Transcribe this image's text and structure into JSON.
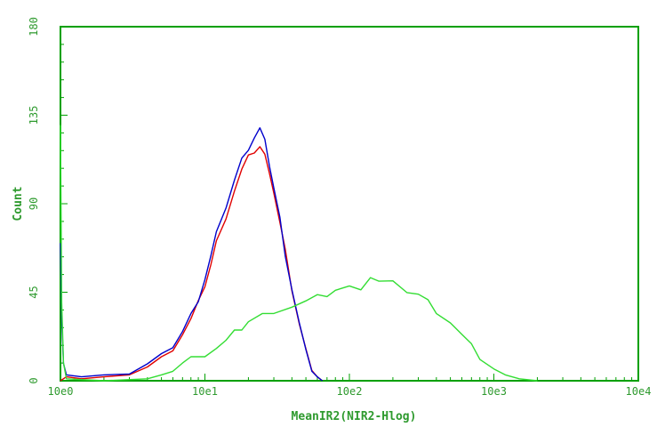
{
  "chart_data": {
    "type": "line",
    "xlabel": "MeanIR2(NIR2-Hlog)",
    "ylabel": "Count",
    "x_scale": "log",
    "xlim": [
      1,
      10000
    ],
    "ylim": [
      0,
      180
    ],
    "x_ticks": [
      {
        "value": 1,
        "label": "10e0"
      },
      {
        "value": 10,
        "label": "10e1"
      },
      {
        "value": 100,
        "label": "10e2"
      },
      {
        "value": 1000,
        "label": "10e3"
      },
      {
        "value": 10000,
        "label": "10e4"
      }
    ],
    "y_ticks": [
      {
        "value": 0,
        "label": "0"
      },
      {
        "value": 45,
        "label": "45"
      },
      {
        "value": 90,
        "label": "90"
      },
      {
        "value": 135,
        "label": "135"
      },
      {
        "value": 180,
        "label": "180"
      }
    ],
    "grid": false,
    "legend": "none",
    "colors": {
      "axis": "#00a000",
      "text": "#2e9a2e",
      "frame_bg": "#ffffff"
    },
    "series": [
      {
        "color": "#e00000",
        "x": [
          1.0,
          1.1,
          1.4,
          2.0,
          3.0,
          4.0,
          5.0,
          6.0,
          7.0,
          8.0,
          9.0,
          10.0,
          11.0,
          12.0,
          14.0,
          16.0,
          18.0,
          20.0,
          22.0,
          24.0,
          26.0,
          28.0,
          30.0,
          33.0,
          36.0,
          40.0,
          45.0,
          50.0,
          55.0,
          60.0,
          65.0
        ],
        "y": [
          0,
          2,
          1,
          2,
          3,
          7,
          11,
          17,
          24,
          31,
          39,
          49,
          59,
          70,
          84,
          97,
          107,
          113,
          117,
          119,
          114,
          107,
          96,
          80,
          65,
          47,
          29,
          15,
          7,
          2,
          0
        ]
      },
      {
        "color": "#0000cc",
        "x": [
          1.0,
          1.02,
          1.05,
          1.1,
          1.4,
          2.0,
          3.0,
          4.0,
          5.0,
          6.0,
          7.0,
          8.0,
          9.0,
          10.0,
          11.0,
          12.0,
          14.0,
          16.0,
          18.0,
          20.0,
          22.0,
          24.0,
          26.0,
          28.0,
          30.0,
          33.0,
          36.0,
          40.0,
          45.0,
          50.0,
          55.0,
          60.0,
          65.0
        ],
        "y": [
          70,
          30,
          10,
          3,
          2,
          3,
          4,
          8,
          12,
          18,
          25,
          33,
          42,
          52,
          63,
          74,
          89,
          102,
          112,
          119,
          124,
          128,
          121,
          110,
          98,
          82,
          65,
          47,
          29,
          14,
          6,
          2,
          0
        ]
      },
      {
        "color": "#33dd33",
        "x": [
          1.0,
          1.02,
          1.05,
          1.1,
          2.0,
          4.0,
          5.0,
          6.0,
          7.0,
          8.0,
          10.0,
          12.0,
          14.0,
          16.0,
          18.0,
          20.0,
          25.0,
          30.0,
          40.0,
          50.0,
          60.0,
          70.0,
          80.0,
          100.0,
          120.0,
          140.0,
          160.0,
          200.0,
          250.0,
          300.0,
          350.0,
          400.0,
          500.0,
          600.0,
          700.0,
          800.0,
          1000.0,
          1200.0,
          1500.0,
          2000.0
        ],
        "y": [
          130,
          40,
          8,
          1,
          0,
          1,
          3,
          6,
          9,
          11,
          14,
          17,
          20,
          24,
          27,
          30,
          33,
          36,
          38,
          40,
          42,
          44,
          46,
          47,
          48,
          53,
          50,
          49,
          46,
          44,
          40,
          36,
          30,
          23,
          17,
          12,
          6,
          3,
          1,
          0
        ]
      }
    ]
  }
}
